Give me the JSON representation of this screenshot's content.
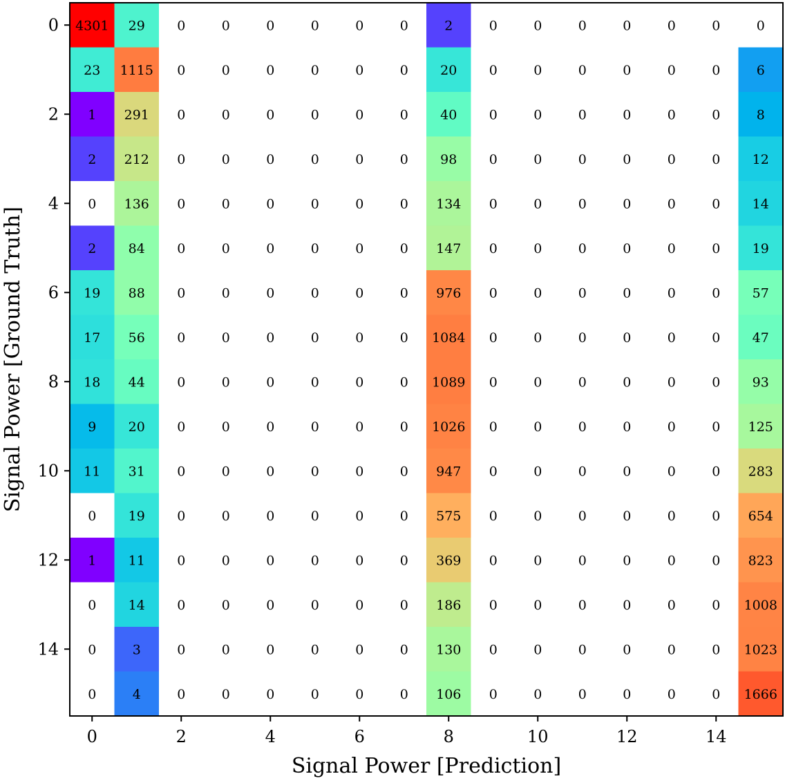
{
  "chart_data": {
    "type": "heatmap",
    "title": "",
    "xlabel": "Signal Power [Prediction]",
    "ylabel": "Signal Power [Ground Truth]",
    "colormap": "rainbow",
    "zero_color": "#ffffff",
    "color_scale": "log",
    "x_ticks": [
      0,
      2,
      4,
      6,
      8,
      10,
      12,
      14
    ],
    "y_ticks": [
      0,
      2,
      4,
      6,
      8,
      10,
      12,
      14
    ],
    "grid": false,
    "matrix": [
      [
        4301,
        29,
        0,
        0,
        0,
        0,
        0,
        0,
        2,
        0,
        0,
        0,
        0,
        0,
        0,
        0
      ],
      [
        23,
        1115,
        0,
        0,
        0,
        0,
        0,
        0,
        20,
        0,
        0,
        0,
        0,
        0,
        0,
        6
      ],
      [
        1,
        291,
        0,
        0,
        0,
        0,
        0,
        0,
        40,
        0,
        0,
        0,
        0,
        0,
        0,
        8
      ],
      [
        2,
        212,
        0,
        0,
        0,
        0,
        0,
        0,
        98,
        0,
        0,
        0,
        0,
        0,
        0,
        12
      ],
      [
        0,
        136,
        0,
        0,
        0,
        0,
        0,
        0,
        134,
        0,
        0,
        0,
        0,
        0,
        0,
        14
      ],
      [
        2,
        84,
        0,
        0,
        0,
        0,
        0,
        0,
        147,
        0,
        0,
        0,
        0,
        0,
        0,
        19
      ],
      [
        19,
        88,
        0,
        0,
        0,
        0,
        0,
        0,
        976,
        0,
        0,
        0,
        0,
        0,
        0,
        57
      ],
      [
        17,
        56,
        0,
        0,
        0,
        0,
        0,
        0,
        1084,
        0,
        0,
        0,
        0,
        0,
        0,
        47
      ],
      [
        18,
        44,
        0,
        0,
        0,
        0,
        0,
        0,
        1089,
        0,
        0,
        0,
        0,
        0,
        0,
        93
      ],
      [
        9,
        20,
        0,
        0,
        0,
        0,
        0,
        0,
        1026,
        0,
        0,
        0,
        0,
        0,
        0,
        125
      ],
      [
        11,
        31,
        0,
        0,
        0,
        0,
        0,
        0,
        947,
        0,
        0,
        0,
        0,
        0,
        0,
        283
      ],
      [
        0,
        19,
        0,
        0,
        0,
        0,
        0,
        0,
        575,
        0,
        0,
        0,
        0,
        0,
        0,
        654
      ],
      [
        1,
        11,
        0,
        0,
        0,
        0,
        0,
        0,
        369,
        0,
        0,
        0,
        0,
        0,
        0,
        823
      ],
      [
        0,
        14,
        0,
        0,
        0,
        0,
        0,
        0,
        186,
        0,
        0,
        0,
        0,
        0,
        0,
        1008
      ],
      [
        0,
        3,
        0,
        0,
        0,
        0,
        0,
        0,
        130,
        0,
        0,
        0,
        0,
        0,
        0,
        1023
      ],
      [
        0,
        4,
        0,
        0,
        0,
        0,
        0,
        0,
        106,
        0,
        0,
        0,
        0,
        0,
        0,
        1666
      ]
    ]
  }
}
